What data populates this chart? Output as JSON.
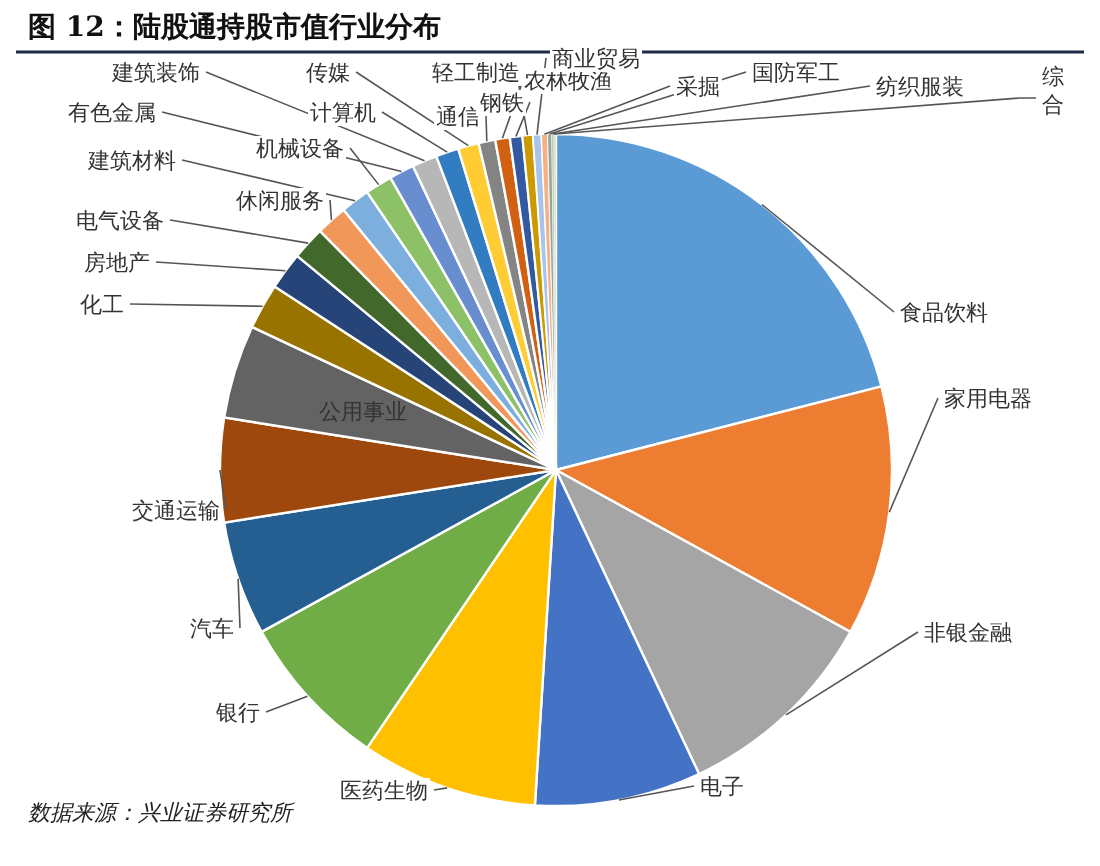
{
  "chart_data": {
    "type": "pie",
    "title": "图 12：陆股通持股市值行业分布",
    "categories": [
      "食品饮料",
      "家用电器",
      "非银金融",
      "电子",
      "医药生物",
      "银行",
      "汽车",
      "交通运输",
      "公用事业",
      "化工",
      "房地产",
      "电气设备",
      "休闲服务",
      "建筑材料",
      "机械设备",
      "有色金属",
      "建筑装饰",
      "计算机",
      "传媒",
      "通信",
      "轻工制造",
      "钢铁",
      "农林牧渔",
      "商业贸易",
      "采掘",
      "国防军工",
      "纺织服装",
      "综合"
    ],
    "values": [
      21,
      12,
      10,
      8,
      8.5,
      7.5,
      5.5,
      5,
      4.5,
      2.2,
      1.8,
      1.6,
      1.5,
      1.4,
      1.3,
      1.2,
      1.2,
      1.1,
      1.0,
      0.8,
      0.7,
      0.6,
      0.5,
      0.4,
      0.3,
      0.2,
      0.1,
      0.1
    ],
    "colors": [
      "#5b9bd5",
      "#ed7d31",
      "#a5a5a5",
      "#4472c4",
      "#ffc000",
      "#70ad47",
      "#255e91",
      "#9e480e",
      "#636363",
      "#997300",
      "#264478",
      "#43682b",
      "#f1975a",
      "#7cafdd",
      "#8cc168",
      "#698ed0",
      "#b7b7b7",
      "#327dc2",
      "#ffcd33",
      "#848484",
      "#d26012",
      "#335aa1",
      "#cc9a00",
      "#a9c4eb",
      "#f4b183",
      "#9fa39f",
      "#a9d18e",
      "#d9d9d9"
    ],
    "annotations": [
      "数据来源：兴业证券研究所"
    ]
  }
}
